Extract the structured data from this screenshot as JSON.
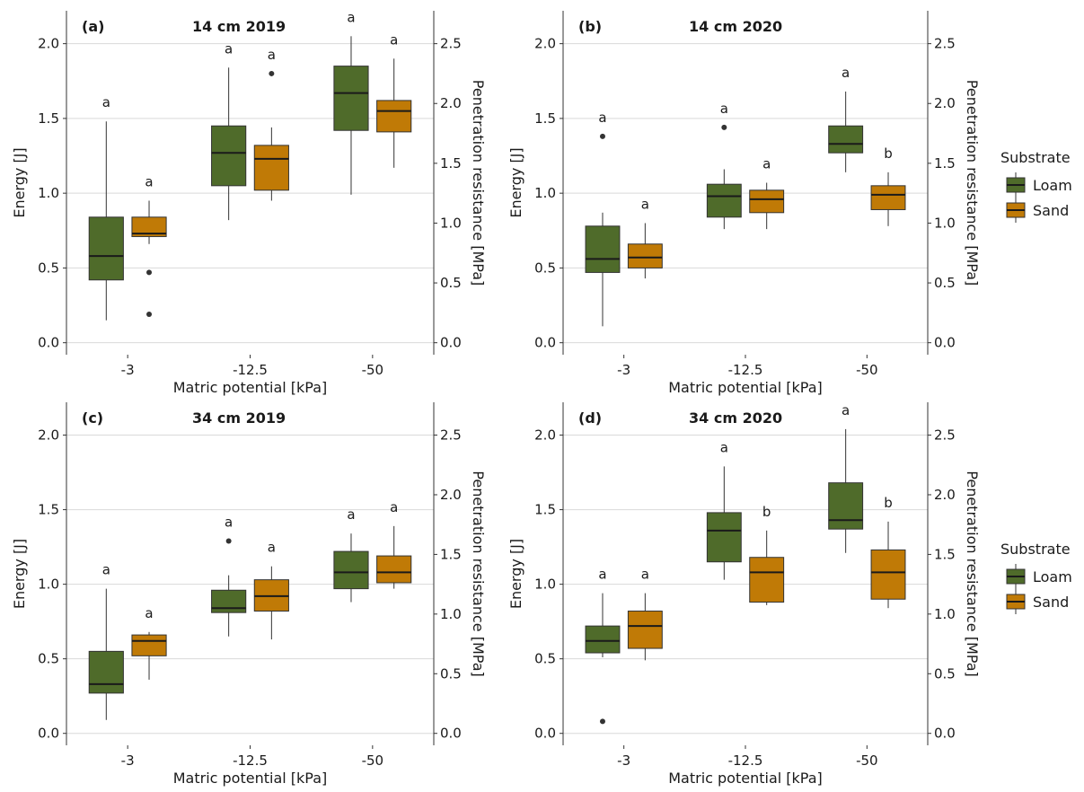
{
  "colors": {
    "Loam": "#4f6b2a",
    "Sand": "#c07a06"
  },
  "legend": {
    "title": "Substrate",
    "items": [
      "Loam",
      "Sand"
    ]
  },
  "chart_data": [
    {
      "type": "box",
      "panel_label": "(a)",
      "title": "14 cm 2019",
      "xlabel": "Matric potential [kPa]",
      "ylabel": "Energy [J]",
      "y2label": "Penetration resistance [MPa]",
      "categories": [
        "-3",
        "-12.5",
        "-50"
      ],
      "ylim": [
        -0.08,
        2.22
      ],
      "yticks": [
        "0.0",
        "0.5",
        "1.0",
        "1.5",
        "2.0"
      ],
      "y2ticks": [
        "0.0",
        "0.5",
        "1.0",
        "1.5",
        "2.0",
        "2.5"
      ],
      "y2_per_y": 1.25,
      "grid": true,
      "series": [
        {
          "name": "Loam",
          "boxes": [
            {
              "min": 0.15,
              "q1": 0.42,
              "median": 0.58,
              "q3": 0.84,
              "max": 1.48,
              "outliers": [],
              "sig": "a"
            },
            {
              "min": 0.82,
              "q1": 1.05,
              "median": 1.27,
              "q3": 1.45,
              "max": 1.84,
              "outliers": [],
              "sig": "a"
            },
            {
              "min": 0.99,
              "q1": 1.42,
              "median": 1.67,
              "q3": 1.85,
              "max": 2.05,
              "outliers": [],
              "sig": "a"
            }
          ]
        },
        {
          "name": "Sand",
          "boxes": [
            {
              "min": 0.66,
              "q1": 0.71,
              "median": 0.73,
              "q3": 0.84,
              "max": 0.95,
              "outliers": [
                0.47,
                0.19
              ],
              "sig": "a"
            },
            {
              "min": 0.95,
              "q1": 1.02,
              "median": 1.23,
              "q3": 1.32,
              "max": 1.44,
              "outliers": [
                1.8
              ],
              "sig": "a"
            },
            {
              "min": 1.17,
              "q1": 1.41,
              "median": 1.55,
              "q3": 1.62,
              "max": 1.9,
              "outliers": [],
              "sig": "a"
            }
          ]
        }
      ]
    },
    {
      "type": "box",
      "panel_label": "(b)",
      "title": "14 cm 2020",
      "xlabel": "Matric potential [kPa]",
      "ylabel": "Energy [J]",
      "y2label": "Penetration resistance [MPa]",
      "categories": [
        "-3",
        "-12.5",
        "-50"
      ],
      "ylim": [
        -0.08,
        2.22
      ],
      "yticks": [
        "0.0",
        "0.5",
        "1.0",
        "1.5",
        "2.0"
      ],
      "y2ticks": [
        "0.0",
        "0.5",
        "1.0",
        "1.5",
        "2.0",
        "2.5"
      ],
      "y2_per_y": 1.25,
      "grid": true,
      "series": [
        {
          "name": "Loam",
          "boxes": [
            {
              "min": 0.11,
              "q1": 0.47,
              "median": 0.56,
              "q3": 0.78,
              "max": 0.87,
              "outliers": [
                1.38
              ],
              "sig": "a"
            },
            {
              "min": 0.76,
              "q1": 0.84,
              "median": 0.98,
              "q3": 1.06,
              "max": 1.16,
              "outliers": [
                1.44
              ],
              "sig": "a"
            },
            {
              "min": 1.14,
              "q1": 1.27,
              "median": 1.33,
              "q3": 1.45,
              "max": 1.68,
              "outliers": [],
              "sig": "a"
            }
          ]
        },
        {
          "name": "Sand",
          "boxes": [
            {
              "min": 0.43,
              "q1": 0.5,
              "median": 0.57,
              "q3": 0.66,
              "max": 0.8,
              "outliers": [],
              "sig": "a"
            },
            {
              "min": 0.76,
              "q1": 0.87,
              "median": 0.96,
              "q3": 1.02,
              "max": 1.07,
              "outliers": [],
              "sig": "a"
            },
            {
              "min": 0.78,
              "q1": 0.89,
              "median": 0.99,
              "q3": 1.05,
              "max": 1.14,
              "outliers": [],
              "sig": "b"
            }
          ]
        }
      ]
    },
    {
      "type": "box",
      "panel_label": "(c)",
      "title": "34 cm 2019",
      "xlabel": "Matric potential [kPa]",
      "ylabel": "Energy [J]",
      "y2label": "Penetration resistance [MPa]",
      "categories": [
        "-3",
        "-12.5",
        "-50"
      ],
      "ylim": [
        -0.08,
        2.22
      ],
      "yticks": [
        "0.0",
        "0.5",
        "1.0",
        "1.5",
        "2.0"
      ],
      "y2ticks": [
        "0.0",
        "0.5",
        "1.0",
        "1.5",
        "2.0",
        "2.5"
      ],
      "y2_per_y": 1.25,
      "grid": true,
      "series": [
        {
          "name": "Loam",
          "boxes": [
            {
              "min": 0.09,
              "q1": 0.27,
              "median": 0.33,
              "q3": 0.55,
              "max": 0.97,
              "outliers": [],
              "sig": "a"
            },
            {
              "min": 0.65,
              "q1": 0.81,
              "median": 0.84,
              "q3": 0.96,
              "max": 1.06,
              "outliers": [
                1.29
              ],
              "sig": "a"
            },
            {
              "min": 0.88,
              "q1": 0.97,
              "median": 1.08,
              "q3": 1.22,
              "max": 1.34,
              "outliers": [],
              "sig": "a"
            }
          ]
        },
        {
          "name": "Sand",
          "boxes": [
            {
              "min": 0.36,
              "q1": 0.52,
              "median": 0.62,
              "q3": 0.66,
              "max": 0.68,
              "outliers": [],
              "sig": "a"
            },
            {
              "min": 0.63,
              "q1": 0.82,
              "median": 0.92,
              "q3": 1.03,
              "max": 1.12,
              "outliers": [],
              "sig": "a"
            },
            {
              "min": 0.97,
              "q1": 1.01,
              "median": 1.08,
              "q3": 1.19,
              "max": 1.39,
              "outliers": [],
              "sig": "a"
            }
          ]
        }
      ]
    },
    {
      "type": "box",
      "panel_label": "(d)",
      "title": "34 cm 2020",
      "xlabel": "Matric potential [kPa]",
      "ylabel": "Energy [J]",
      "y2label": "Penetration resistance [MPa]",
      "categories": [
        "-3",
        "-12.5",
        "-50"
      ],
      "ylim": [
        -0.08,
        2.22
      ],
      "yticks": [
        "0.0",
        "0.5",
        "1.0",
        "1.5",
        "2.0"
      ],
      "y2ticks": [
        "0.0",
        "0.5",
        "1.0",
        "1.5",
        "2.0",
        "2.5"
      ],
      "y2_per_y": 1.25,
      "grid": true,
      "series": [
        {
          "name": "Loam",
          "boxes": [
            {
              "min": 0.51,
              "q1": 0.54,
              "median": 0.62,
              "q3": 0.72,
              "max": 0.94,
              "outliers": [
                0.08
              ],
              "sig": "a"
            },
            {
              "min": 1.03,
              "q1": 1.15,
              "median": 1.36,
              "q3": 1.48,
              "max": 1.79,
              "outliers": [],
              "sig": "a"
            },
            {
              "min": 1.21,
              "q1": 1.37,
              "median": 1.43,
              "q3": 1.68,
              "max": 2.04,
              "outliers": [],
              "sig": "a"
            }
          ]
        },
        {
          "name": "Sand",
          "boxes": [
            {
              "min": 0.49,
              "q1": 0.57,
              "median": 0.72,
              "q3": 0.82,
              "max": 0.94,
              "outliers": [],
              "sig": "a"
            },
            {
              "min": 0.86,
              "q1": 0.88,
              "median": 1.08,
              "q3": 1.18,
              "max": 1.36,
              "outliers": [],
              "sig": "b"
            },
            {
              "min": 0.84,
              "q1": 0.9,
              "median": 1.08,
              "q3": 1.23,
              "max": 1.42,
              "outliers": [],
              "sig": "b"
            }
          ]
        }
      ]
    }
  ]
}
